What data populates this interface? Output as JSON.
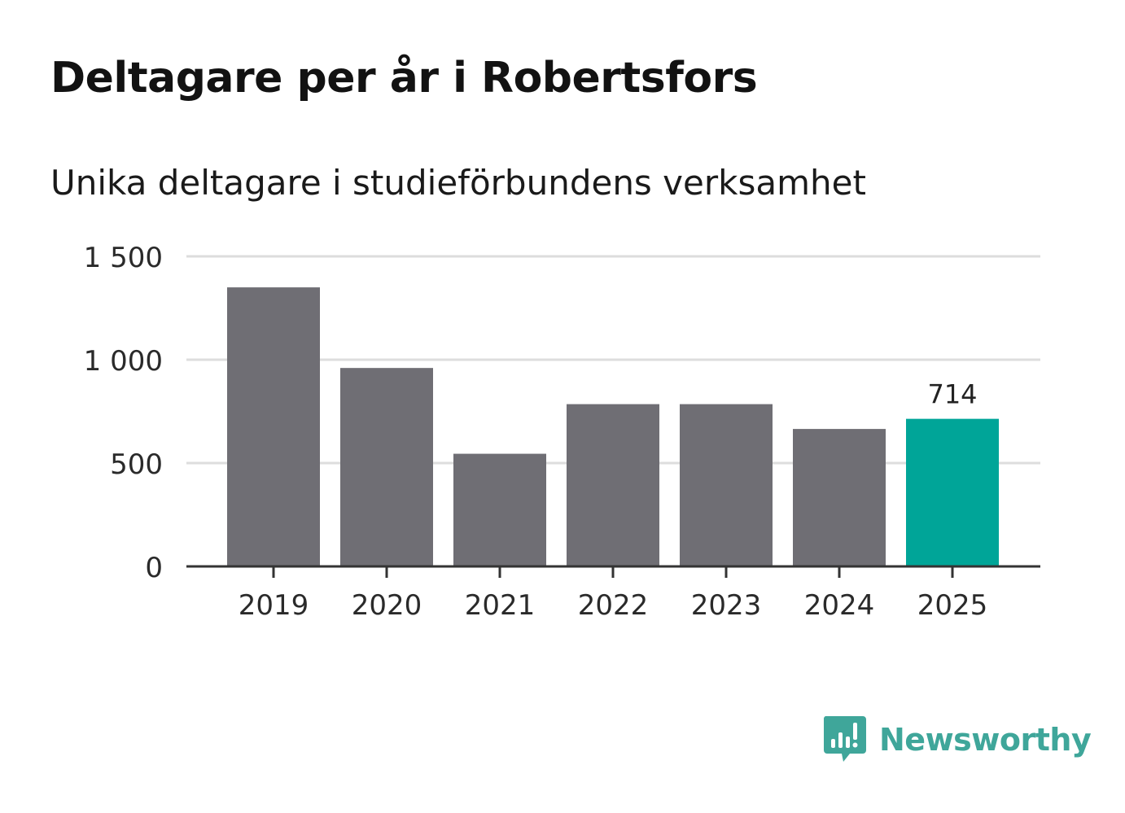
{
  "title": "Deltagare per år i Robertsfors",
  "subtitle": "Unika deltagare i studieförbundens verksamhet",
  "brand": "Newsworthy",
  "colors": {
    "bar": "#6f6e74",
    "highlight": "#00a598",
    "grid": "#dddddd",
    "axis": "#333333",
    "brand": "#3fa69a"
  },
  "chart_data": {
    "type": "bar",
    "categories": [
      "2019",
      "2020",
      "2021",
      "2022",
      "2023",
      "2024",
      "2025"
    ],
    "values": [
      1350,
      960,
      545,
      785,
      785,
      665,
      714
    ],
    "highlight_index": 6,
    "data_labels": [
      {
        "index": 6,
        "text": "714"
      }
    ],
    "ylim": [
      0,
      1500
    ],
    "yticks": [
      0,
      500,
      1000,
      1500
    ],
    "ytick_labels": [
      "0",
      "500",
      "1 000",
      "1 500"
    ],
    "xlabel": "",
    "ylabel": "",
    "grid": true
  }
}
